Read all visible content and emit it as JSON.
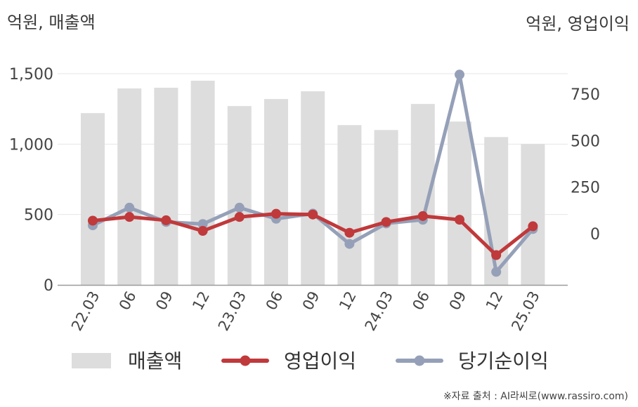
{
  "unit_left": "억원, 매출액",
  "unit_right": "억원, 영업이익",
  "source": "※자료 출처 : AI라씨로(www.rassiro.com)",
  "chart_data": {
    "type": "bar",
    "categories": [
      "22.03",
      "06",
      "09",
      "12",
      "23.03",
      "06",
      "09",
      "12",
      "24.03",
      "06",
      "09",
      "12",
      "25.03"
    ],
    "series": [
      {
        "name": "매출액",
        "type": "bar",
        "axis": "left",
        "color": "#dddddd",
        "values": [
          1220,
          1395,
          1400,
          1450,
          1270,
          1320,
          1375,
          1135,
          1100,
          1285,
          1160,
          1050,
          1000
        ]
      },
      {
        "name": "영업이익",
        "type": "line",
        "axis": "right",
        "color": "#c0393b",
        "values": [
          70,
          90,
          72,
          15,
          90,
          107,
          103,
          5,
          63,
          95,
          75,
          -115,
          40
        ]
      },
      {
        "name": "당기순이익",
        "type": "line",
        "axis": "right",
        "color": "#95a0b8",
        "values": [
          45,
          140,
          63,
          52,
          140,
          80,
          108,
          -55,
          55,
          75,
          855,
          -205,
          25
        ]
      }
    ],
    "left_axis": {
      "ticks": [
        "0",
        "500",
        "1,000",
        "1,500"
      ],
      "tick_values": [
        0,
        500,
        1000,
        1500
      ],
      "range": [
        0,
        1500
      ]
    },
    "right_axis": {
      "ticks": [
        "0",
        "250",
        "500",
        "750"
      ],
      "tick_values": [
        0,
        250,
        500,
        750
      ],
      "range": [
        -245,
        856
      ]
    },
    "grid": true,
    "legend": "bottom"
  }
}
